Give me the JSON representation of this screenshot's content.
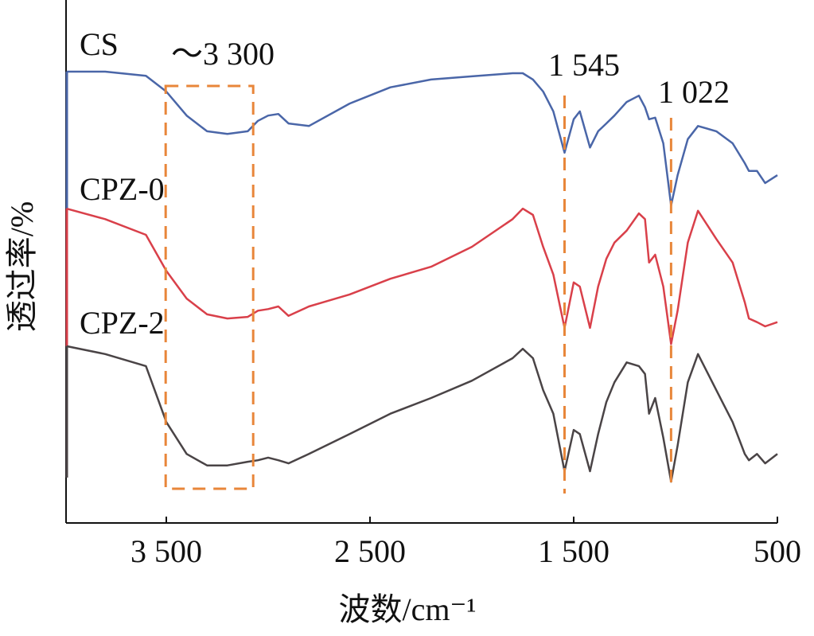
{
  "chart_data": {
    "type": "line",
    "xlabel": "波数/cm⁻¹",
    "ylabel": "透过率/%",
    "xlim": [
      4000,
      500
    ],
    "ylim": [
      0,
      100
    ],
    "xticks": [
      {
        "value": 3500,
        "label": "3 500"
      },
      {
        "value": 2500,
        "label": "2 500"
      },
      {
        "value": 1500,
        "label": "1 500"
      },
      500
    ],
    "x": [
      3990,
      3800,
      3600,
      3500,
      3400,
      3300,
      3200,
      3100,
      3050,
      3000,
      2950,
      2900,
      2800,
      2600,
      2400,
      2200,
      2000,
      1800,
      1750,
      1700,
      1650,
      1600,
      1545,
      1500,
      1470,
      1420,
      1380,
      1340,
      1300,
      1240,
      1180,
      1150,
      1130,
      1100,
      1060,
      1022,
      990,
      940,
      890,
      800,
      720,
      660,
      640,
      600,
      560,
      500
    ],
    "series": [
      {
        "name": "CS",
        "color": "#4a66a8",
        "values": [
          86.3,
          86.3,
          85.5,
          82.5,
          77.9,
          74.9,
          74.4,
          74.9,
          76.9,
          77.9,
          78.2,
          76.4,
          75.9,
          80.2,
          83.3,
          84.8,
          85.4,
          86.0,
          86.0,
          84.8,
          82.5,
          78.7,
          70.8,
          77.2,
          78.7,
          71.8,
          74.9,
          76.4,
          77.9,
          80.5,
          81.7,
          79.5,
          77.2,
          77.5,
          72.6,
          60.7,
          66.5,
          73.4,
          75.9,
          74.9,
          72.6,
          68.8,
          67.3,
          67.3,
          65.0,
          66.5
        ]
      },
      {
        "name": "CPZ-0",
        "color": "#d9404a",
        "values": [
          60.1,
          58.1,
          55.1,
          48.2,
          42.9,
          39.9,
          39.1,
          39.4,
          40.6,
          40.9,
          41.4,
          39.6,
          41.4,
          43.7,
          46.7,
          49.0,
          52.8,
          58.1,
          60.1,
          58.9,
          52.8,
          47.5,
          37.3,
          46.0,
          45.2,
          37.3,
          45.2,
          50.5,
          53.6,
          55.9,
          59.2,
          58.1,
          49.8,
          51.3,
          45.2,
          34.2,
          40.6,
          53.6,
          59.7,
          54.3,
          49.8,
          42.2,
          39.1,
          38.4,
          37.6,
          38.4
        ]
      },
      {
        "name": "CPZ-2",
        "color": "#4a4446",
        "values": [
          33.8,
          32.3,
          30.0,
          19.3,
          13.2,
          11.0,
          11.0,
          11.7,
          12.0,
          12.5,
          12.0,
          11.4,
          13.2,
          17.0,
          20.9,
          23.9,
          27.2,
          31.5,
          33.3,
          31.5,
          25.4,
          20.9,
          9.9,
          17.8,
          17.0,
          9.9,
          17.0,
          23.1,
          26.9,
          30.7,
          30.0,
          28.5,
          20.9,
          23.9,
          16.3,
          7.9,
          14.8,
          26.9,
          32.3,
          25.4,
          19.3,
          13.2,
          12.0,
          13.2,
          11.4,
          13.2
        ]
      }
    ],
    "annotations": [
      {
        "text": "～3 300",
        "x": 3300
      },
      {
        "text": "1 545",
        "x": 1545
      },
      {
        "text": "1 022",
        "x": 1022
      }
    ]
  }
}
